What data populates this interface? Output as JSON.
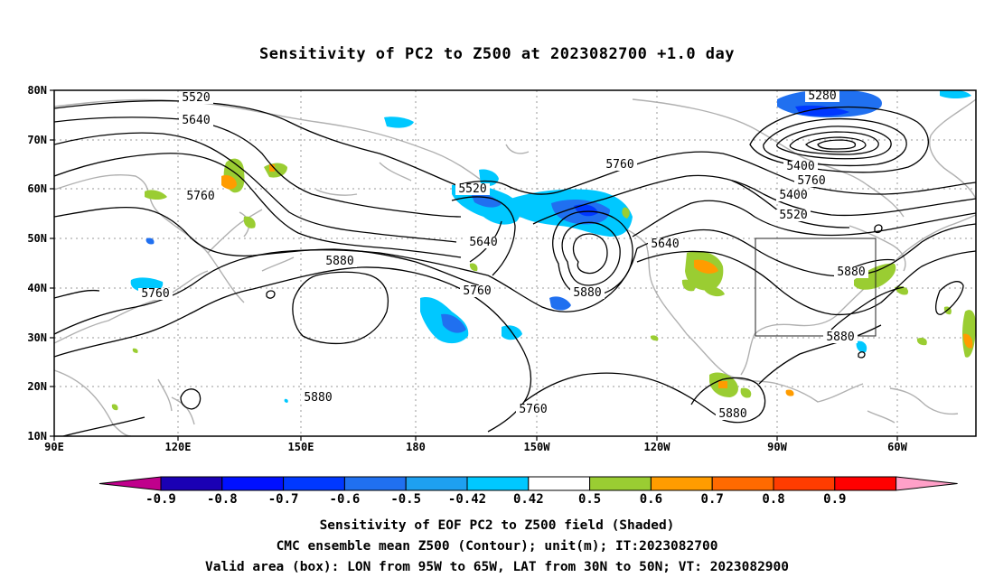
{
  "title": "Sensitivity of PC2 to Z500 at 2023082700 +1.0 day",
  "captions": [
    "Sensitivity of EOF PC2 to Z500 field (Shaded)",
    "CMC ensemble mean Z500 (Contour); unit(m); IT:2023082700",
    "Valid area (box): LON from 95W to 65W, LAT from 30N to 50N; VT: 2023082900"
  ],
  "map": {
    "lat_labels": [
      "80N",
      "70N",
      "60N",
      "50N",
      "40N",
      "30N",
      "20N",
      "10N"
    ],
    "lon_labels": [
      "90E",
      "120E",
      "150E",
      "180",
      "150W",
      "120W",
      "90W",
      "60W"
    ],
    "valid_box": {
      "lon_range": [
        "95W",
        "65W"
      ],
      "lat_range": [
        "30N",
        "50N"
      ]
    },
    "contour_labels": [
      "5520",
      "5640",
      "5760",
      "5520",
      "5640",
      "5760",
      "5880",
      "5760",
      "5880",
      "5760",
      "5880",
      "5760",
      "5640",
      "5520",
      "5400",
      "5280",
      "5400",
      "5760",
      "5880",
      "5880",
      "5880"
    ]
  },
  "colorbar": {
    "labels": [
      "-0.9",
      "-0.8",
      "-0.7",
      "-0.6",
      "-0.5",
      "-0.42",
      "0.42",
      "0.5",
      "0.6",
      "0.7",
      "0.8",
      "0.9"
    ],
    "colors": [
      "#c0008c",
      "#1a00b4",
      "#0010ff",
      "#0038ff",
      "#2070f0",
      "#1ea0f0",
      "#00c8ff",
      "#ffffff",
      "#9acd32",
      "#ff9c00",
      "#ff6a00",
      "#ff3c00",
      "#ff0000",
      "#ffa0c8"
    ]
  }
}
